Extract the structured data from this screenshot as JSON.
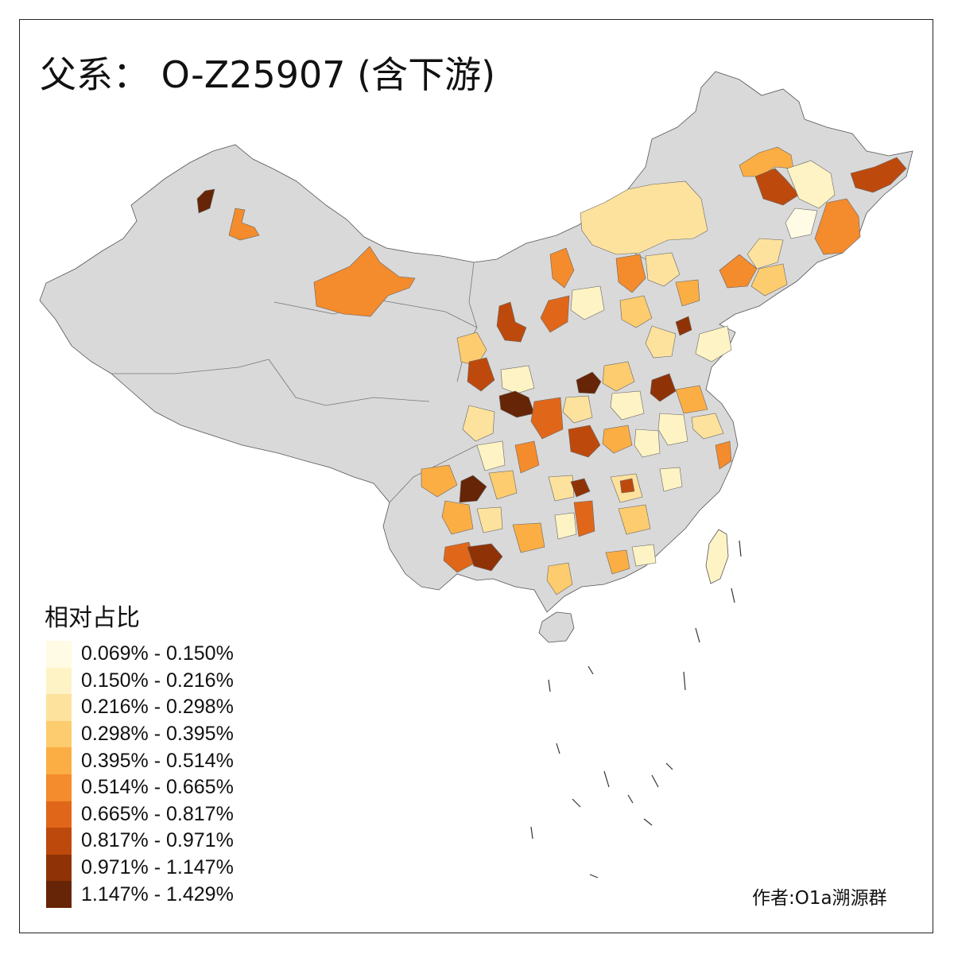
{
  "title": "父系： O-Z25907 (含下游)",
  "legend": {
    "title": "相对占比",
    "items": [
      {
        "label": "0.069% - 0.150%",
        "color": "#FFFBE4"
      },
      {
        "label": "0.150% - 0.216%",
        "color": "#FEF3C4"
      },
      {
        "label": "0.216% - 0.298%",
        "color": "#FDE29E"
      },
      {
        "label": "0.298% - 0.395%",
        "color": "#FDCC6E"
      },
      {
        "label": "0.395% - 0.514%",
        "color": "#FBAE44"
      },
      {
        "label": "0.514% - 0.665%",
        "color": "#F48B2C"
      },
      {
        "label": "0.665% - 0.817%",
        "color": "#E0671A"
      },
      {
        "label": "0.817% - 0.971%",
        "color": "#BD4A0C"
      },
      {
        "label": "0.971% - 1.147%",
        "color": "#8F3307"
      },
      {
        "label": "1.147% - 1.429%",
        "color": "#662506"
      }
    ]
  },
  "author": "作者:O1a溯源群",
  "colors": {
    "no_data": "#D9D9D9",
    "border": "#555555",
    "frame": "#222222"
  }
}
